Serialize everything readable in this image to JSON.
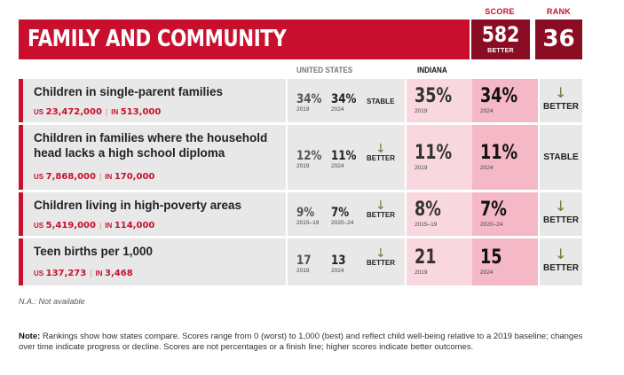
{
  "header": {
    "title": "FAMILY AND COMMUNITY",
    "score_label": "SCORE",
    "rank_label": "RANK",
    "score": "582",
    "score_sub": "BETTER",
    "rank": "36"
  },
  "columns": {
    "us": "UNITED STATES",
    "state": "INDIANA"
  },
  "rows": [
    {
      "title": "Children in single-parent families",
      "us_label": "US",
      "us_count": "23,472,000",
      "in_label": "IN",
      "in_count": "513,000",
      "us_v1": "34%",
      "us_y1": "2019",
      "us_v2": "34%",
      "us_y2": "2024",
      "us_trend": "STABLE",
      "us_arrow": "",
      "in_v1": "35%",
      "in_y1": "2019",
      "in_v2": "34%",
      "in_y2": "2024",
      "in_trend": "BETTER",
      "in_arrow": "↓"
    },
    {
      "title": "Children in families where the household head lacks a high school diploma",
      "us_label": "US",
      "us_count": "7,868,000",
      "in_label": "IN",
      "in_count": "170,000",
      "us_v1": "12%",
      "us_y1": "2019",
      "us_v2": "11%",
      "us_y2": "2024",
      "us_trend": "BETTER",
      "us_arrow": "↓",
      "in_v1": "11%",
      "in_y1": "2019",
      "in_v2": "11%",
      "in_y2": "2024",
      "in_trend": "STABLE",
      "in_arrow": ""
    },
    {
      "title": "Children living in high-poverty areas",
      "us_label": "US",
      "us_count": "5,419,000",
      "in_label": "IN",
      "in_count": "114,000",
      "us_v1": "9%",
      "us_y1": "2015–19",
      "us_v2": "7%",
      "us_y2": "2020–24",
      "us_trend": "BETTER",
      "us_arrow": "↓",
      "in_v1": "8%",
      "in_y1": "2015–19",
      "in_v2": "7%",
      "in_y2": "2020–24",
      "in_trend": "BETTER",
      "in_arrow": "↓"
    },
    {
      "title": "Teen births per 1,000",
      "us_label": "US",
      "us_count": "137,273",
      "in_label": "IN",
      "in_count": "3,468",
      "us_v1": "17",
      "us_y1": "2019",
      "us_v2": "13",
      "us_y2": "2024",
      "us_trend": "BETTER",
      "us_arrow": "↓",
      "in_v1": "21",
      "in_y1": "2019",
      "in_v2": "15",
      "in_y2": "2024",
      "in_trend": "BETTER",
      "in_arrow": "↓"
    }
  ],
  "footer": {
    "na": "N.A.: Not available",
    "note_label": "Note:",
    "note": "Rankings show how states compare. Scores range from 0 (worst) to 1,000 (best) and reflect child well-being relative to a 2019 baseline; changes over time indicate progress or decline. Scores are not percentages or a finish line; higher scores indicate better outcomes."
  },
  "colors": {
    "accent": "#c8102e",
    "dark_accent": "#8b0d24",
    "arrow": "#6a7a3a",
    "state_light": "#f9d7df",
    "state_dark": "#f4b8c6"
  }
}
